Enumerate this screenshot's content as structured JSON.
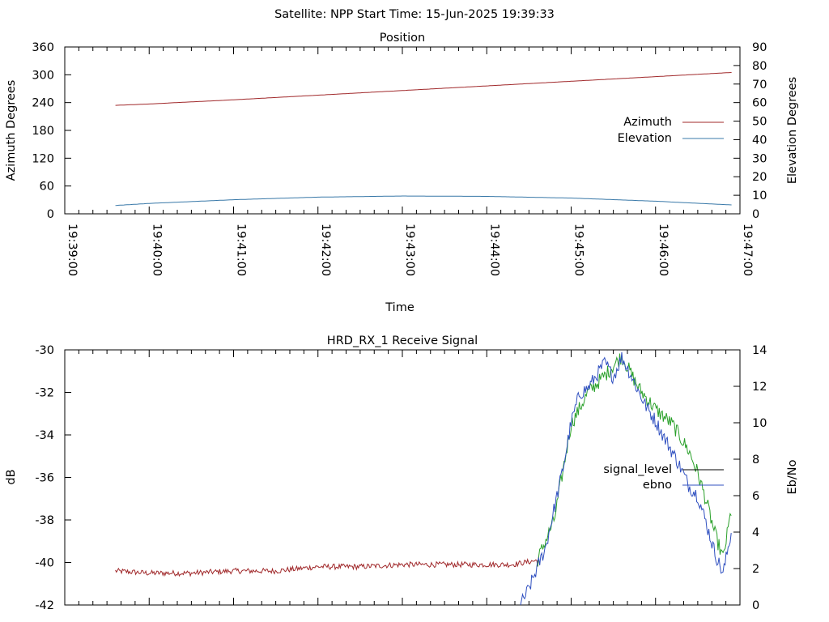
{
  "header": {
    "text": "Satellite: NPP    Start Time: 15-Jun-2025 19:39:33"
  },
  "colors": {
    "azimuth": "#a0282a",
    "elevation": "#3878a8",
    "signal_level": "#a0282a",
    "ebno_green": "#2aa02a",
    "ebno_blue": "#3050c0",
    "axis": "#000000"
  },
  "chart_data": [
    {
      "type": "line",
      "title": "Position",
      "xlabel": "Time",
      "ylabel": "Azimuth Degrees",
      "y2label": "Elevation Degrees",
      "xlim": [
        "19:39:00",
        "19:47:00"
      ],
      "ylim": [
        0,
        360
      ],
      "y2lim": [
        0,
        90
      ],
      "x_ticks": [
        "19:39:00",
        "19:40:00",
        "19:41:00",
        "19:42:00",
        "19:43:00",
        "19:44:00",
        "19:45:00",
        "19:46:00",
        "19:47:00"
      ],
      "y_ticks": [
        "0",
        "60",
        "120",
        "180",
        "240",
        "300",
        "360"
      ],
      "y2_ticks": [
        "0",
        "10",
        "20",
        "30",
        "40",
        "50",
        "60",
        "70",
        "80",
        "90"
      ],
      "legend": "right",
      "series": [
        {
          "name": "Azimuth",
          "axis": "y",
          "x_min": [
            0.6,
            1,
            2,
            3,
            4,
            5,
            6,
            7,
            7.9
          ],
          "values": [
            234,
            237,
            246,
            256,
            266,
            276,
            286,
            296,
            305
          ]
        },
        {
          "name": "Elevation",
          "axis": "y2",
          "x_min": [
            0.6,
            1,
            2,
            3,
            4,
            5,
            6,
            7,
            7.9
          ],
          "values": [
            4.5,
            5.6,
            7.6,
            9.0,
            9.6,
            9.4,
            8.5,
            6.8,
            4.8
          ]
        }
      ]
    },
    {
      "type": "line",
      "title": "HRD_RX_1 Receive Signal",
      "ylabel": "dB",
      "y2label": "Eb/No",
      "ylim": [
        -42,
        -30
      ],
      "y2lim": [
        0,
        14
      ],
      "y_ticks": [
        "-30",
        "-32",
        "-34",
        "-36",
        "-38",
        "-40",
        "-42"
      ],
      "y2_ticks": [
        "0",
        "2",
        "4",
        "6",
        "8",
        "10",
        "12",
        "14"
      ],
      "legend": "right",
      "series": [
        {
          "name": "signal_level",
          "axis": "y",
          "x_min": [
            0.6,
            1.0,
            1.5,
            2.0,
            2.5,
            3.0,
            3.5,
            4.0,
            4.5,
            5.0,
            5.3,
            5.6,
            5.8,
            6.0,
            6.2,
            6.4,
            6.6,
            6.8,
            7.0,
            7.2,
            7.4,
            7.5,
            7.6,
            7.7,
            7.8,
            7.9
          ],
          "values": [
            -40.4,
            -40.5,
            -40.5,
            -40.4,
            -40.4,
            -40.2,
            -40.2,
            -40.1,
            -40.1,
            -40.1,
            -40.1,
            -39.9,
            -38.0,
            -33.5,
            -32.0,
            -31.2,
            -30.3,
            -31.8,
            -32.8,
            -33.5,
            -34.8,
            -35.8,
            -37.1,
            -38.6,
            -39.8,
            -37.5
          ]
        },
        {
          "name": "ebno",
          "axis": "y2",
          "x_min": [
            5.4,
            5.5,
            5.7,
            5.9,
            6.0,
            6.1,
            6.2,
            6.3,
            6.4,
            6.5,
            6.6,
            6.7,
            6.8,
            6.9,
            7.0,
            7.1,
            7.2,
            7.3,
            7.4,
            7.5,
            7.6,
            7.7,
            7.8,
            7.9
          ],
          "values": [
            0.0,
            0.9,
            3.2,
            7.4,
            10.0,
            11.6,
            11.9,
            12.6,
            13.3,
            12.5,
            13.6,
            12.7,
            11.7,
            10.8,
            10.1,
            9.2,
            8.4,
            7.5,
            6.5,
            6.0,
            4.5,
            2.9,
            1.7,
            4.1
          ]
        }
      ]
    }
  ]
}
